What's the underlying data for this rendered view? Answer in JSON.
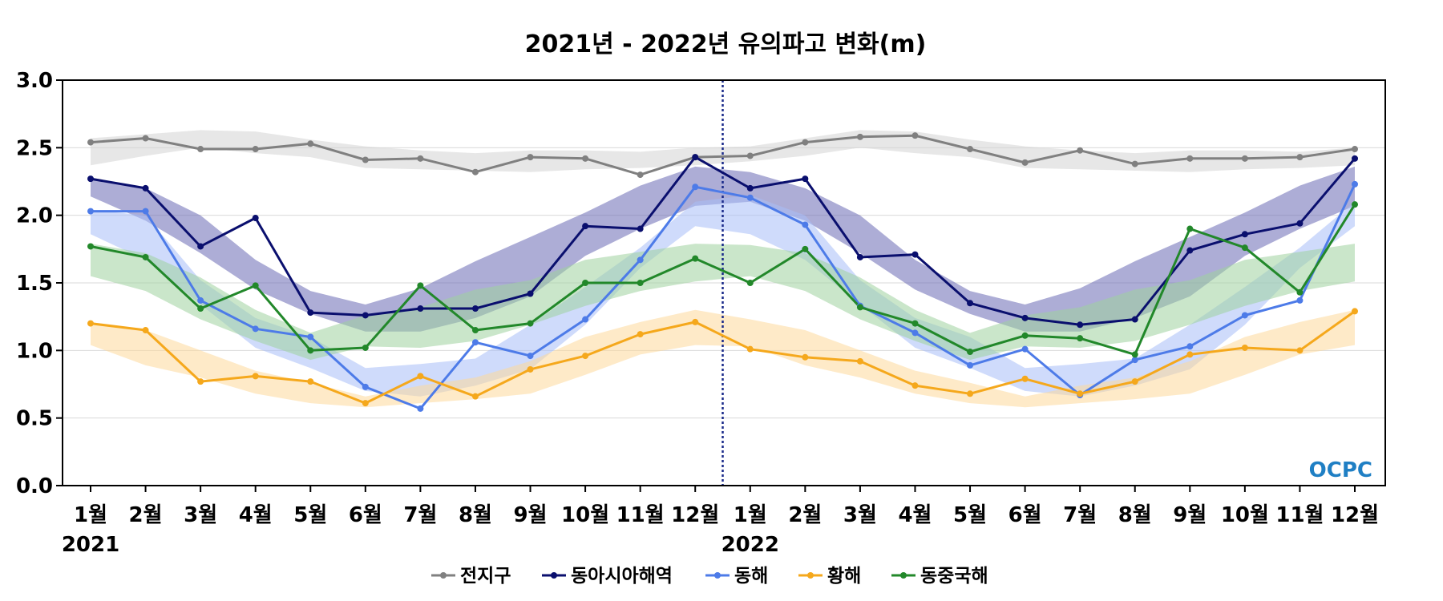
{
  "chart_data": {
    "type": "line",
    "title": "2021년 - 2022년 유의파고 변화(m)",
    "xlabel": "",
    "ylabel": "",
    "ylim": [
      0,
      3
    ],
    "yticks": [
      "0.0",
      "0.5",
      "1.0",
      "1.5",
      "2.0",
      "2.5",
      "3.0"
    ],
    "categories": [
      "1월",
      "2월",
      "3월",
      "4월",
      "5월",
      "6월",
      "7월",
      "8월",
      "9월",
      "10월",
      "11월",
      "12월",
      "1월",
      "2월",
      "3월",
      "4월",
      "5월",
      "6월",
      "7월",
      "8월",
      "9월",
      "10월",
      "11월",
      "12월"
    ],
    "year_labels": [
      {
        "text": "2021",
        "index": 0
      },
      {
        "text": "2022",
        "index": 12
      }
    ],
    "year_divider_between": [
      11,
      12
    ],
    "grid": true,
    "legend_position": "bottom",
    "logo": "OCPC",
    "series": [
      {
        "name": "전지구",
        "color": "#808080",
        "band_color": "#d3d3d3",
        "values": [
          2.54,
          2.57,
          2.49,
          2.49,
          2.53,
          2.41,
          2.42,
          2.32,
          2.43,
          2.42,
          2.3,
          2.43,
          2.44,
          2.54,
          2.58,
          2.59,
          2.49,
          2.39,
          2.48,
          2.38,
          2.42,
          2.42,
          2.43,
          2.49
        ],
        "band_upper": [
          2.57,
          2.6,
          2.63,
          2.62,
          2.56,
          2.51,
          2.48,
          2.46,
          2.48,
          2.48,
          2.47,
          2.5,
          2.51,
          2.57,
          2.63,
          2.62,
          2.56,
          2.51,
          2.48,
          2.46,
          2.48,
          2.48,
          2.47,
          2.5
        ],
        "band_lower": [
          2.37,
          2.44,
          2.5,
          2.46,
          2.43,
          2.35,
          2.34,
          2.33,
          2.32,
          2.34,
          2.35,
          2.37,
          2.4,
          2.44,
          2.5,
          2.46,
          2.43,
          2.35,
          2.34,
          2.33,
          2.32,
          2.34,
          2.35,
          2.37
        ]
      },
      {
        "name": "동아시아해역",
        "color": "#0a0f6e",
        "band_color": "#6a6ab5",
        "values": [
          2.27,
          2.2,
          1.77,
          1.98,
          1.28,
          1.26,
          1.31,
          1.31,
          1.42,
          1.92,
          1.9,
          2.43,
          2.2,
          2.27,
          1.69,
          1.71,
          1.35,
          1.24,
          1.19,
          1.23,
          1.74,
          1.86,
          1.94,
          2.42
        ],
        "band_upper": [
          2.28,
          2.2,
          2.0,
          1.67,
          1.44,
          1.34,
          1.46,
          1.66,
          1.84,
          2.02,
          2.22,
          2.36,
          2.32,
          2.2,
          2.0,
          1.67,
          1.44,
          1.34,
          1.46,
          1.66,
          1.84,
          2.02,
          2.22,
          2.36
        ],
        "band_lower": [
          2.14,
          1.96,
          1.72,
          1.45,
          1.27,
          1.14,
          1.14,
          1.24,
          1.4,
          1.7,
          1.9,
          2.07,
          2.1,
          1.96,
          1.72,
          1.45,
          1.27,
          1.14,
          1.14,
          1.24,
          1.4,
          1.7,
          1.9,
          2.07
        ]
      },
      {
        "name": "동해",
        "color": "#4d7be8",
        "band_color": "#a8bef7",
        "values": [
          2.03,
          2.03,
          1.37,
          1.16,
          1.1,
          0.73,
          0.57,
          1.06,
          0.96,
          1.23,
          1.67,
          2.21,
          2.13,
          1.93,
          1.33,
          1.13,
          0.89,
          1.01,
          0.67,
          0.93,
          1.03,
          1.26,
          1.37,
          2.23
        ],
        "band_upper": [
          2.04,
          2.0,
          1.52,
          1.24,
          1.1,
          0.87,
          0.9,
          0.94,
          1.19,
          1.47,
          1.76,
          2.1,
          2.15,
          2.0,
          1.52,
          1.24,
          1.1,
          0.87,
          0.9,
          0.94,
          1.19,
          1.47,
          1.76,
          2.1
        ],
        "band_lower": [
          1.86,
          1.67,
          1.34,
          1.02,
          0.87,
          0.7,
          0.66,
          0.74,
          0.86,
          1.19,
          1.61,
          1.92,
          1.86,
          1.67,
          1.34,
          1.02,
          0.87,
          0.7,
          0.66,
          0.74,
          0.86,
          1.19,
          1.61,
          1.92
        ]
      },
      {
        "name": "황해",
        "color": "#f5a81c",
        "band_color": "#fdd89a",
        "values": [
          1.2,
          1.15,
          0.77,
          0.81,
          0.77,
          0.61,
          0.81,
          0.66,
          0.86,
          0.96,
          1.12,
          1.21,
          1.01,
          0.95,
          0.92,
          0.74,
          0.68,
          0.79,
          0.68,
          0.77,
          0.97,
          1.02,
          1.0,
          1.29
        ],
        "band_upper": [
          1.21,
          1.15,
          1.0,
          0.85,
          0.76,
          0.66,
          0.74,
          0.8,
          0.92,
          1.1,
          1.21,
          1.3,
          1.23,
          1.15,
          1.0,
          0.85,
          0.76,
          0.66,
          0.74,
          0.8,
          0.92,
          1.1,
          1.21,
          1.3
        ],
        "band_lower": [
          1.04,
          0.89,
          0.8,
          0.68,
          0.61,
          0.58,
          0.61,
          0.64,
          0.68,
          0.82,
          0.97,
          1.04,
          1.03,
          0.89,
          0.8,
          0.68,
          0.61,
          0.58,
          0.61,
          0.64,
          0.68,
          0.82,
          0.97,
          1.04
        ]
      },
      {
        "name": "동중국해",
        "color": "#22882a",
        "band_color": "#9fd29f",
        "values": [
          1.77,
          1.69,
          1.31,
          1.48,
          1.0,
          1.02,
          1.48,
          1.15,
          1.2,
          1.5,
          1.5,
          1.68,
          1.5,
          1.75,
          1.32,
          1.2,
          0.99,
          1.11,
          1.09,
          0.97,
          1.9,
          1.76,
          1.43,
          2.08
        ],
        "band_upper": [
          1.79,
          1.72,
          1.54,
          1.3,
          1.13,
          1.26,
          1.32,
          1.45,
          1.52,
          1.67,
          1.73,
          1.79,
          1.78,
          1.72,
          1.54,
          1.3,
          1.13,
          1.26,
          1.32,
          1.45,
          1.52,
          1.67,
          1.73,
          1.79
        ],
        "band_lower": [
          1.55,
          1.44,
          1.23,
          1.07,
          0.93,
          1.03,
          1.02,
          1.07,
          1.19,
          1.33,
          1.44,
          1.51,
          1.55,
          1.44,
          1.23,
          1.07,
          0.93,
          1.03,
          1.02,
          1.07,
          1.19,
          1.33,
          1.44,
          1.51
        ]
      }
    ]
  }
}
